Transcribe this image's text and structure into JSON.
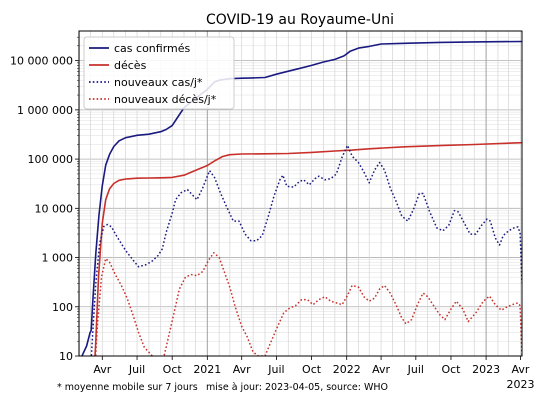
{
  "chart_data": {
    "type": "line",
    "title": "COVID-19 au Royaume-Uni",
    "xlabel": "",
    "ylabel": "",
    "yscale": "log",
    "ylim": [
      10,
      40000000
    ],
    "xlim": [
      "2020-01-31",
      "2023-04-05"
    ],
    "grid": true,
    "legend_position": "top-left",
    "y_ticks": [
      {
        "value": 10,
        "label": "10"
      },
      {
        "value": 100,
        "label": "100"
      },
      {
        "value": 1000,
        "label": "1 000"
      },
      {
        "value": 10000,
        "label": "10 000"
      },
      {
        "value": 100000,
        "label": "100 000"
      },
      {
        "value": 1000000,
        "label": "1 000 000"
      },
      {
        "value": 10000000,
        "label": "10 000 000"
      }
    ],
    "x_ticks": [
      {
        "date": "2020-04-01",
        "label": "Avr"
      },
      {
        "date": "2020-07-01",
        "label": "Juil"
      },
      {
        "date": "2020-10-01",
        "label": "Oct"
      },
      {
        "date": "2021-01-01",
        "label": "2021"
      },
      {
        "date": "2021-04-01",
        "label": "Avr"
      },
      {
        "date": "2021-07-01",
        "label": "Juil"
      },
      {
        "date": "2021-10-01",
        "label": "Oct"
      },
      {
        "date": "2022-01-01",
        "label": "2022"
      },
      {
        "date": "2022-04-01",
        "label": "Avr"
      },
      {
        "date": "2022-07-01",
        "label": "Juil"
      },
      {
        "date": "2022-10-01",
        "label": "Oct"
      },
      {
        "date": "2023-01-01",
        "label": "2023"
      },
      {
        "date": "2023-04-01",
        "label": "Avr"
      }
    ],
    "x_tick_extra_label": "2023",
    "footnote_left": "* moyenne mobile sur 7 jours",
    "footnote_right": "mise à jour: 2023-04-05, source: WHO",
    "series": [
      {
        "name": "cas confirmés",
        "color": "#1a1a80",
        "dash": "solid",
        "points": [
          [
            "2020-01-31",
            2
          ],
          [
            "2020-02-05",
            9
          ],
          [
            "2020-02-20",
            16
          ],
          [
            "2020-02-29",
            30
          ],
          [
            "2020-03-03",
            33
          ],
          [
            "2020-03-07",
            120
          ],
          [
            "2020-03-15",
            1200
          ],
          [
            "2020-03-23",
            7000
          ],
          [
            "2020-04-01",
            29000
          ],
          [
            "2020-04-10",
            75000
          ],
          [
            "2020-04-20",
            125000
          ],
          [
            "2020-05-01",
            180000
          ],
          [
            "2020-05-15",
            235000
          ],
          [
            "2020-06-01",
            272000
          ],
          [
            "2020-07-01",
            305000
          ],
          [
            "2020-08-01",
            320000
          ],
          [
            "2020-09-01",
            360000
          ],
          [
            "2020-09-15",
            400000
          ],
          [
            "2020-10-01",
            480000
          ],
          [
            "2020-10-15",
            700000
          ],
          [
            "2020-11-01",
            1100000
          ],
          [
            "2020-12-01",
            1700000
          ],
          [
            "2021-01-01",
            2600000
          ],
          [
            "2021-01-20",
            3700000
          ],
          [
            "2021-02-01",
            4000000
          ],
          [
            "2021-03-01",
            4300000
          ],
          [
            "2021-04-01",
            4400000
          ],
          [
            "2021-05-01",
            4450000
          ],
          [
            "2021-06-01",
            4550000
          ],
          [
            "2021-07-01",
            5300000
          ],
          [
            "2021-08-01",
            6100000
          ],
          [
            "2021-09-01",
            7000000
          ],
          [
            "2021-10-01",
            8000000
          ],
          [
            "2021-11-01",
            9400000
          ],
          [
            "2021-12-01",
            10600000
          ],
          [
            "2021-12-25",
            12500000
          ],
          [
            "2022-01-10",
            15500000
          ],
          [
            "2022-02-01",
            18000000
          ],
          [
            "2022-03-01",
            19500000
          ],
          [
            "2022-04-01",
            21800000
          ],
          [
            "2022-06-01",
            22500000
          ],
          [
            "2022-09-01",
            23500000
          ],
          [
            "2022-12-01",
            24000000
          ],
          [
            "2023-04-05",
            24500000
          ]
        ]
      },
      {
        "name": "décès",
        "color": "#c8302a",
        "dash": "solid",
        "points": [
          [
            "2020-03-06",
            1
          ],
          [
            "2020-03-15",
            20
          ],
          [
            "2020-03-22",
            400
          ],
          [
            "2020-04-01",
            5000
          ],
          [
            "2020-04-10",
            15000
          ],
          [
            "2020-04-20",
            25000
          ],
          [
            "2020-05-01",
            32000
          ],
          [
            "2020-05-15",
            37000
          ],
          [
            "2020-06-01",
            39500
          ],
          [
            "2020-07-01",
            41000
          ],
          [
            "2020-08-01",
            41300
          ],
          [
            "2020-09-01",
            41700
          ],
          [
            "2020-10-01",
            42500
          ],
          [
            "2020-11-01",
            47000
          ],
          [
            "2020-12-01",
            59000
          ],
          [
            "2021-01-01",
            74000
          ],
          [
            "2021-01-20",
            92000
          ],
          [
            "2021-02-10",
            113000
          ],
          [
            "2021-03-01",
            123000
          ],
          [
            "2021-04-01",
            127000
          ],
          [
            "2021-06-01",
            128000
          ],
          [
            "2021-08-01",
            130000
          ],
          [
            "2021-10-01",
            137000
          ],
          [
            "2021-12-01",
            146000
          ],
          [
            "2022-01-15",
            152000
          ],
          [
            "2022-03-01",
            162000
          ],
          [
            "2022-06-01",
            178000
          ],
          [
            "2022-09-01",
            188000
          ],
          [
            "2022-12-01",
            198000
          ],
          [
            "2023-04-05",
            215000
          ]
        ]
      },
      {
        "name": "nouveaux cas/j*",
        "color": "#1a1a80",
        "dash": "dotted",
        "points": [
          [
            "2020-03-01",
            5
          ],
          [
            "2020-03-08",
            40
          ],
          [
            "2020-03-15",
            300
          ],
          [
            "2020-03-25",
            1900
          ],
          [
            "2020-04-05",
            4300
          ],
          [
            "2020-04-15",
            4700
          ],
          [
            "2020-04-25",
            4200
          ],
          [
            "2020-05-10",
            2600
          ],
          [
            "2020-06-01",
            1400
          ],
          [
            "2020-06-20",
            900
          ],
          [
            "2020-07-05",
            650
          ],
          [
            "2020-07-25",
            720
          ],
          [
            "2020-08-10",
            850
          ],
          [
            "2020-08-25",
            1100
          ],
          [
            "2020-09-05",
            1500
          ],
          [
            "2020-09-15",
            3200
          ],
          [
            "2020-10-01",
            8000
          ],
          [
            "2020-10-10",
            15000
          ],
          [
            "2020-10-25",
            21000
          ],
          [
            "2020-11-10",
            24000
          ],
          [
            "2020-11-25",
            18000
          ],
          [
            "2020-12-05",
            15000
          ],
          [
            "2020-12-20",
            26000
          ],
          [
            "2021-01-01",
            45000
          ],
          [
            "2021-01-07",
            58000
          ],
          [
            "2021-01-20",
            42000
          ],
          [
            "2021-02-05",
            20000
          ],
          [
            "2021-02-20",
            11000
          ],
          [
            "2021-03-10",
            5500
          ],
          [
            "2021-03-25",
            5500
          ],
          [
            "2021-04-10",
            3000
          ],
          [
            "2021-04-25",
            2200
          ],
          [
            "2021-05-10",
            2200
          ],
          [
            "2021-05-25",
            2800
          ],
          [
            "2021-06-10",
            7000
          ],
          [
            "2021-06-25",
            18000
          ],
          [
            "2021-07-10",
            38000
          ],
          [
            "2021-07-18",
            47000
          ],
          [
            "2021-07-28",
            28000
          ],
          [
            "2021-08-15",
            27000
          ],
          [
            "2021-08-30",
            35000
          ],
          [
            "2021-09-10",
            38000
          ],
          [
            "2021-09-25",
            30000
          ],
          [
            "2021-10-10",
            40000
          ],
          [
            "2021-10-20",
            45000
          ],
          [
            "2021-11-05",
            38000
          ],
          [
            "2021-11-20",
            40000
          ],
          [
            "2021-12-05",
            50000
          ],
          [
            "2021-12-20",
            110000
          ],
          [
            "2022-01-03",
            190000
          ],
          [
            "2022-01-15",
            115000
          ],
          [
            "2022-02-01",
            85000
          ],
          [
            "2022-02-15",
            55000
          ],
          [
            "2022-03-01",
            33000
          ],
          [
            "2022-03-15",
            60000
          ],
          [
            "2022-03-28",
            85000
          ],
          [
            "2022-04-10",
            60000
          ],
          [
            "2022-04-25",
            26000
          ],
          [
            "2022-05-10",
            14000
          ],
          [
            "2022-05-25",
            7000
          ],
          [
            "2022-06-10",
            5500
          ],
          [
            "2022-06-25",
            9500
          ],
          [
            "2022-07-10",
            20000
          ],
          [
            "2022-07-20",
            20000
          ],
          [
            "2022-08-05",
            9000
          ],
          [
            "2022-08-25",
            4000
          ],
          [
            "2022-09-10",
            3500
          ],
          [
            "2022-09-25",
            4500
          ],
          [
            "2022-10-10",
            9000
          ],
          [
            "2022-10-20",
            8500
          ],
          [
            "2022-11-05",
            5000
          ],
          [
            "2022-11-20",
            3000
          ],
          [
            "2022-12-05",
            3000
          ],
          [
            "2022-12-20",
            4500
          ],
          [
            "2023-01-03",
            6000
          ],
          [
            "2023-01-12",
            5500
          ],
          [
            "2023-01-25",
            2500
          ],
          [
            "2023-02-05",
            1800
          ],
          [
            "2023-02-15",
            2800
          ],
          [
            "2023-03-01",
            3500
          ],
          [
            "2023-03-15",
            4000
          ],
          [
            "2023-03-25",
            4200
          ],
          [
            "2023-03-31",
            3200
          ],
          [
            "2023-04-05",
            300
          ]
        ]
      },
      {
        "name": "nouveaux décès/j*",
        "color": "#c8302a",
        "dash": "dotted",
        "points": [
          [
            "2020-03-12",
            5
          ],
          [
            "2020-03-20",
            50
          ],
          [
            "2020-03-30",
            400
          ],
          [
            "2020-04-10",
            950
          ],
          [
            "2020-04-20",
            800
          ],
          [
            "2020-05-05",
            450
          ],
          [
            "2020-05-20",
            280
          ],
          [
            "2020-06-05",
            150
          ],
          [
            "2020-06-20",
            70
          ],
          [
            "2020-07-05",
            30
          ],
          [
            "2020-07-20",
            15
          ],
          [
            "2020-08-10",
            10
          ],
          [
            "2020-08-25",
            8
          ],
          [
            "2020-09-05",
            7
          ],
          [
            "2020-09-20",
            22
          ],
          [
            "2020-10-05",
            70
          ],
          [
            "2020-10-20",
            230
          ],
          [
            "2020-11-05",
            400
          ],
          [
            "2020-11-20",
            450
          ],
          [
            "2020-12-05",
            430
          ],
          [
            "2020-12-20",
            520
          ],
          [
            "2021-01-05",
            900
          ],
          [
            "2021-01-18",
            1250
          ],
          [
            "2021-02-01",
            1000
          ],
          [
            "2021-02-15",
            500
          ],
          [
            "2021-03-01",
            250
          ],
          [
            "2021-03-15",
            100
          ],
          [
            "2021-04-01",
            40
          ],
          [
            "2021-04-15",
            25
          ],
          [
            "2021-05-01",
            12
          ],
          [
            "2021-05-15",
            10
          ],
          [
            "2021-06-01",
            10
          ],
          [
            "2021-06-15",
            18
          ],
          [
            "2021-07-01",
            35
          ],
          [
            "2021-07-20",
            75
          ],
          [
            "2021-08-05",
            95
          ],
          [
            "2021-08-20",
            105
          ],
          [
            "2021-09-05",
            140
          ],
          [
            "2021-09-20",
            140
          ],
          [
            "2021-10-05",
            110
          ],
          [
            "2021-10-20",
            140
          ],
          [
            "2021-11-05",
            160
          ],
          [
            "2021-11-20",
            130
          ],
          [
            "2021-12-05",
            120
          ],
          [
            "2021-12-20",
            110
          ],
          [
            "2022-01-03",
            170
          ],
          [
            "2022-01-15",
            270
          ],
          [
            "2022-02-01",
            250
          ],
          [
            "2022-02-15",
            160
          ],
          [
            "2022-03-01",
            130
          ],
          [
            "2022-03-15",
            150
          ],
          [
            "2022-03-28",
            230
          ],
          [
            "2022-04-10",
            270
          ],
          [
            "2022-04-25",
            190
          ],
          [
            "2022-05-10",
            110
          ],
          [
            "2022-05-25",
            60
          ],
          [
            "2022-06-05",
            45
          ],
          [
            "2022-06-20",
            55
          ],
          [
            "2022-07-05",
            110
          ],
          [
            "2022-07-20",
            190
          ],
          [
            "2022-08-01",
            160
          ],
          [
            "2022-08-15",
            110
          ],
          [
            "2022-09-01",
            70
          ],
          [
            "2022-09-15",
            55
          ],
          [
            "2022-10-01",
            90
          ],
          [
            "2022-10-15",
            130
          ],
          [
            "2022-11-01",
            90
          ],
          [
            "2022-11-15",
            50
          ],
          [
            "2022-12-05",
            75
          ],
          [
            "2022-12-25",
            130
          ],
          [
            "2023-01-10",
            165
          ],
          [
            "2023-01-25",
            110
          ],
          [
            "2023-02-10",
            85
          ],
          [
            "2023-02-25",
            100
          ],
          [
            "2023-03-10",
            110
          ],
          [
            "2023-03-25",
            120
          ],
          [
            "2023-03-31",
            105
          ],
          [
            "2023-04-05",
            10
          ]
        ]
      }
    ]
  }
}
